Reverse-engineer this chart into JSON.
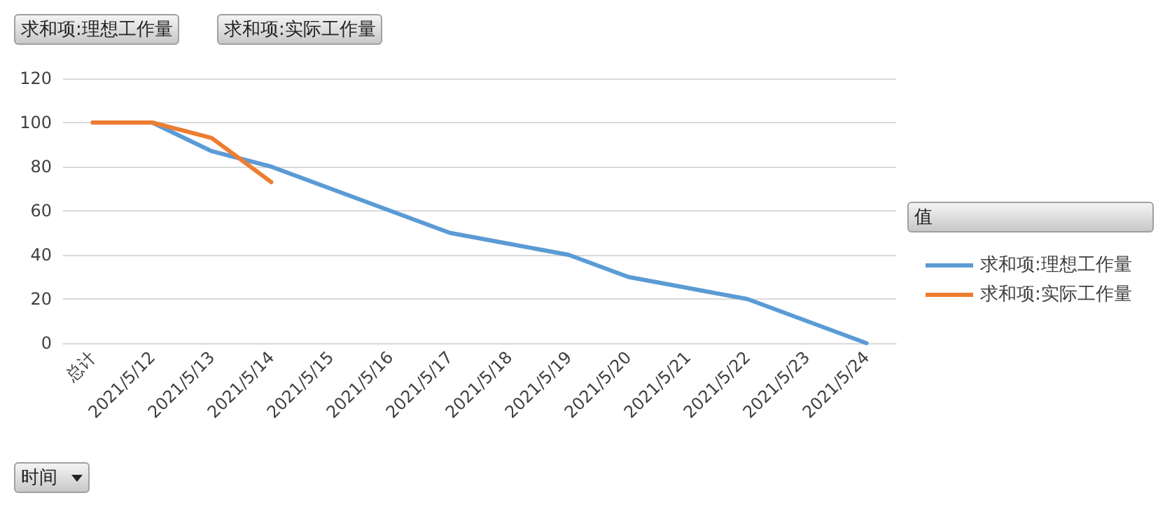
{
  "chart_data": {
    "type": "line",
    "categories": [
      "总计",
      "2021/5/12",
      "2021/5/13",
      "2021/5/14",
      "2021/5/15",
      "2021/5/16",
      "2021/5/17",
      "2021/5/18",
      "2021/5/19",
      "2021/5/20",
      "2021/5/21",
      "2021/5/22",
      "2021/5/23",
      "2021/5/24"
    ],
    "series": [
      {
        "name": "求和项:理想工作量",
        "color": "#5b9bd5",
        "values": [
          100,
          100,
          87,
          80,
          70,
          60,
          50,
          45,
          40,
          30,
          25,
          20,
          10,
          0
        ]
      },
      {
        "name": "求和项:实际工作量",
        "color": "#ed7d31",
        "values": [
          100,
          100,
          93,
          73,
          null,
          null,
          null,
          null,
          null,
          null,
          null,
          null,
          null,
          null
        ]
      }
    ],
    "ylim": [
      0,
      120
    ],
    "yticks": [
      0,
      20,
      40,
      60,
      80,
      100,
      120
    ],
    "grid": "y",
    "legend": "right",
    "legend_title": "值",
    "xlabel": "时间",
    "annotations": [
      "求和项:理想工作量",
      "求和项:实际工作量"
    ],
    "line_style": "solid"
  }
}
